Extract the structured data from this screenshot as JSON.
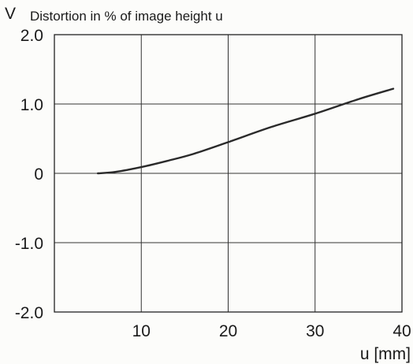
{
  "chart_data": {
    "type": "line",
    "title_symbol": "V",
    "title": "Distortion in % of image height u",
    "xlabel": "u [mm]",
    "ylabel": "",
    "xlim": [
      0,
      40
    ],
    "ylim": [
      -2.0,
      2.0
    ],
    "x_ticks": [
      10,
      20,
      30,
      40
    ],
    "x_tick_labels": [
      "10",
      "20",
      "30",
      "40"
    ],
    "y_ticks": [
      2.0,
      1.0,
      0,
      -1.0,
      -2.0
    ],
    "y_tick_labels": [
      "2.0",
      "1.0",
      "0",
      "-1.0",
      "-2.0"
    ],
    "grid": true,
    "line_color": "#2a2a2a",
    "series": [
      {
        "x": [
          5.0,
          7.0,
          10.0,
          13.0,
          16.0,
          20.0,
          25.0,
          30.0,
          35.0,
          39.0
        ],
        "y": [
          0.0,
          0.02,
          0.09,
          0.18,
          0.28,
          0.45,
          0.67,
          0.86,
          1.07,
          1.22
        ]
      }
    ]
  }
}
